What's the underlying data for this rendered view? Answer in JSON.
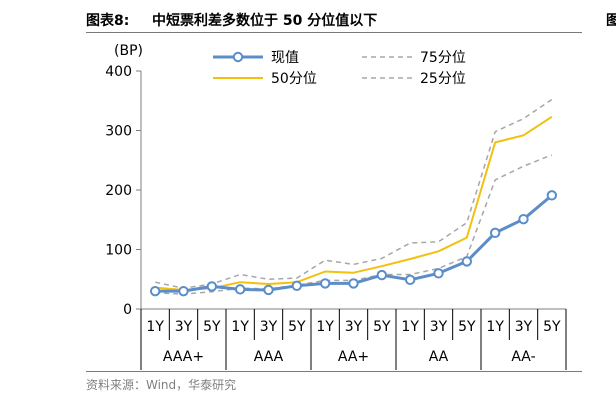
{
  "figure": {
    "label": "图表8:",
    "title": "中短票利差多数位于 50 分位值以下",
    "source": "资料来源：Wind，华泰研究",
    "edge_mark": "图"
  },
  "chart_data": {
    "type": "line",
    "unit_label": "(BP)",
    "ylim": [
      0,
      400
    ],
    "yticks": [
      0,
      100,
      200,
      300,
      400
    ],
    "tenors": [
      "1Y",
      "3Y",
      "5Y",
      "1Y",
      "3Y",
      "5Y",
      "1Y",
      "3Y",
      "5Y",
      "1Y",
      "3Y",
      "5Y",
      "1Y",
      "3Y",
      "5Y"
    ],
    "groups": [
      "AAA+",
      "AAA",
      "AA+",
      "AA",
      "AA-"
    ],
    "legend_position": "top",
    "series": [
      {
        "name": "现值",
        "style": "solid-marker",
        "color": "#5b8dc9",
        "values": [
          30,
          30,
          38,
          33,
          32,
          39,
          43,
          43,
          57,
          49,
          60,
          80,
          128,
          151,
          191
        ]
      },
      {
        "name": "75分位",
        "style": "dashed",
        "color": "#a6a6a6",
        "values": [
          45,
          35,
          42,
          58,
          50,
          52,
          82,
          75,
          85,
          111,
          113,
          145,
          298,
          320,
          352
        ]
      },
      {
        "name": "50分位",
        "style": "solid",
        "color": "#f2c00f",
        "values": [
          36,
          32,
          35,
          45,
          42,
          45,
          63,
          61,
          72,
          84,
          97,
          120,
          280,
          292,
          323
        ]
      },
      {
        "name": "25分位",
        "style": "dashed",
        "color": "#a6a6a6",
        "values": [
          27,
          25,
          29,
          35,
          34,
          40,
          48,
          48,
          58,
          58,
          68,
          88,
          217,
          240,
          259
        ]
      }
    ]
  }
}
